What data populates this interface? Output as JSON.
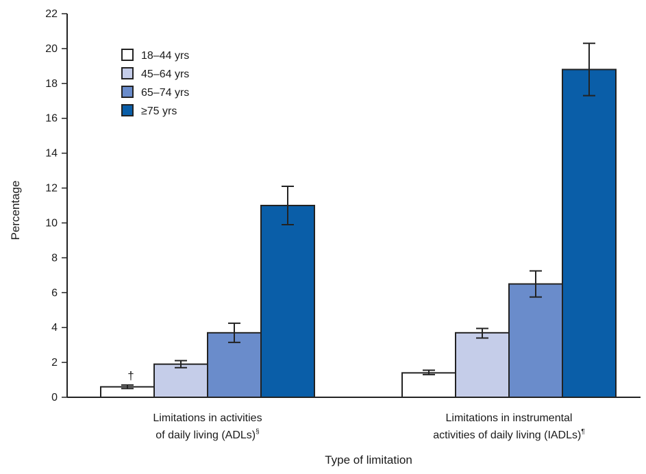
{
  "chart_data": {
    "type": "bar",
    "title": "",
    "xlabel": "Type of limitation",
    "ylabel": "Percentage",
    "ylim": [
      0,
      22
    ],
    "yticks": [
      0,
      2,
      4,
      6,
      8,
      10,
      12,
      14,
      16,
      18,
      20,
      22
    ],
    "grid": false,
    "legend_position": "top-left",
    "categories": [
      {
        "line1": "Limitations in activities",
        "line2": "of daily living (ADLs)",
        "footnote": "§"
      },
      {
        "line1": "Limitations in instrumental",
        "line2": "activities of daily living (IADLs)",
        "footnote": "¶"
      }
    ],
    "series": [
      {
        "name": "18–44 yrs",
        "color": "#ffffff",
        "values": [
          0.6,
          1.4
        ],
        "ci_low": [
          0.5,
          1.3
        ],
        "ci_high": [
          0.7,
          1.55
        ],
        "markers": [
          "†",
          ""
        ]
      },
      {
        "name": "45–64 yrs",
        "color": "#c5cde9",
        "values": [
          1.9,
          3.7
        ],
        "ci_low": [
          1.7,
          3.4
        ],
        "ci_high": [
          2.1,
          3.95
        ]
      },
      {
        "name": "65–74 yrs",
        "color": "#6a8ccb",
        "values": [
          3.7,
          6.5
        ],
        "ci_low": [
          3.15,
          5.75
        ],
        "ci_high": [
          4.25,
          7.25
        ]
      },
      {
        "name": "≥75 yrs",
        "color": "#0a5ea8",
        "values": [
          11.0,
          18.8
        ],
        "ci_low": [
          9.9,
          17.3
        ],
        "ci_high": [
          12.1,
          20.3
        ]
      }
    ]
  }
}
